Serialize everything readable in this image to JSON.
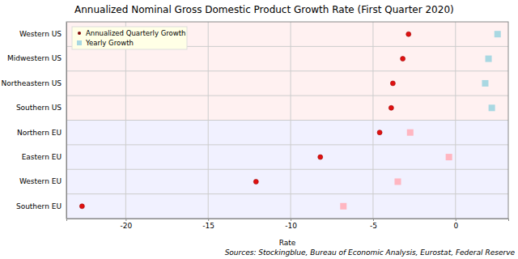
{
  "chart_data": {
    "type": "dot",
    "orientation": "horizontal",
    "title": "Annualized Nominal Gross Domestic Product Growth Rate (First Quarter 2020)",
    "x_label": "Rate",
    "annotations": [
      "Sources: Stockingblue, Bureau of Economic Analysis, Eurostat, Federal Reserve"
    ],
    "categories": [
      "Western US",
      "Midwestern US",
      "Northeastern US",
      "Southern US",
      "Northern EU",
      "Eastern EU",
      "Western EU",
      "Southern EU"
    ],
    "series": [
      {
        "name": "Annualized Quarterly Growth",
        "marker": "circle",
        "color": "#e01010",
        "values": [
          -2.85,
          -3.2,
          -3.8,
          -3.9,
          -4.6,
          -8.2,
          -12.1,
          -22.65
        ]
      },
      {
        "name": "Yearly Growth",
        "marker": "square",
        "colors": [
          "#a9d8e2",
          "#a9d8e2",
          "#a9d8e2",
          "#a9d8e2",
          "#ffb6c1",
          "#ffb6c1",
          "#ffb6c1",
          "#ffb6c1"
        ],
        "values": [
          2.55,
          2.0,
          1.8,
          2.2,
          -2.75,
          -0.4,
          -3.5,
          -6.8
        ]
      }
    ],
    "xlim": [
      -23.6,
      3.2
    ],
    "xticks": [
      -20,
      -15,
      -10,
      -5,
      0
    ],
    "grid": true,
    "legend": "upper left"
  }
}
